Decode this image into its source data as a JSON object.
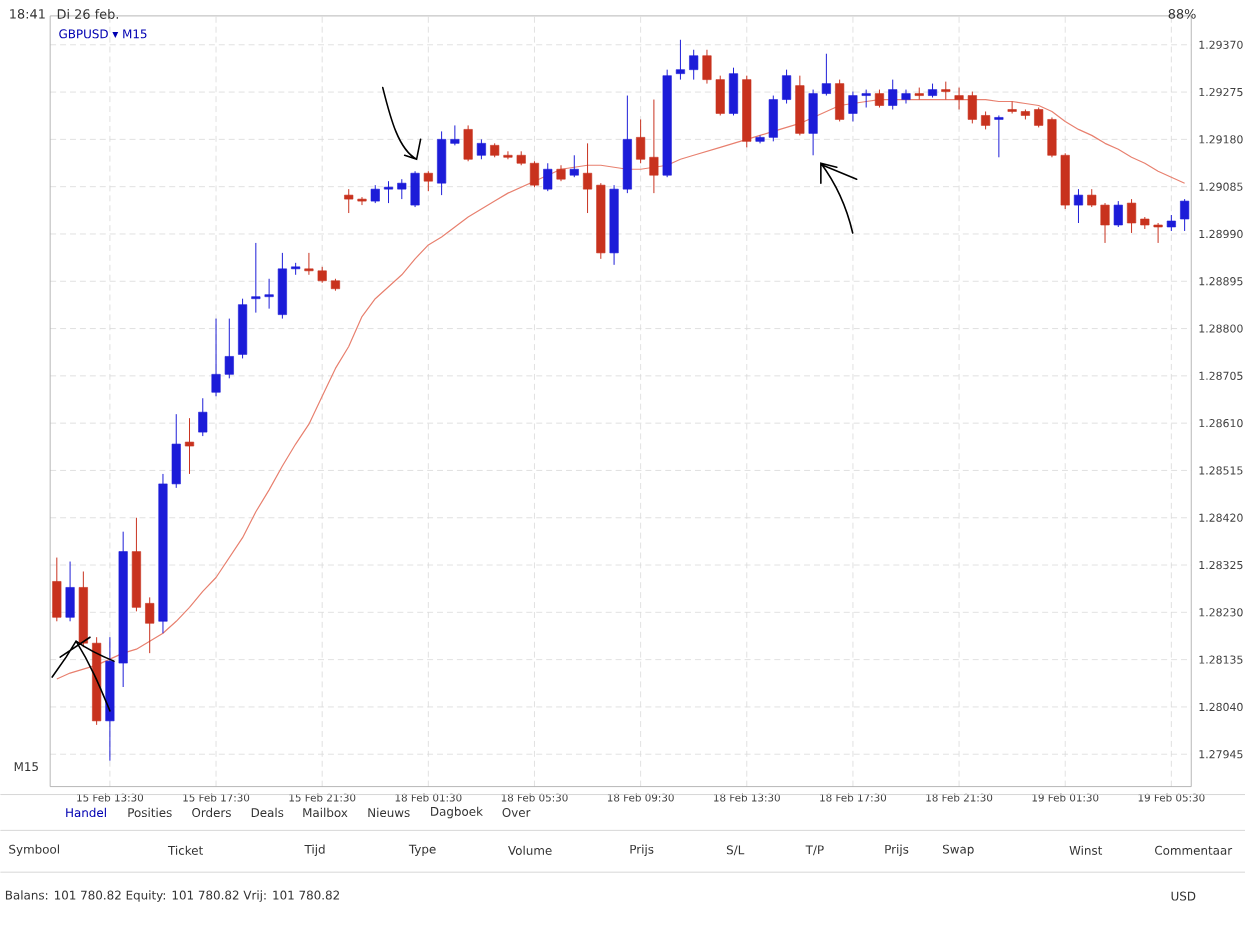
{
  "chart_data": {
    "type": "candlestick",
    "title": "GBPUSD ▾ M15",
    "categories": [
      null,
      null,
      null,
      null,
      "15 Feb 13:30",
      null,
      null,
      null,
      null,
      null,
      null,
      null,
      "15 Feb 17:30",
      null,
      null,
      null,
      null,
      null,
      null,
      null,
      "15 Feb 21:30",
      null,
      null,
      null,
      null,
      null,
      null,
      null,
      "18 Feb 01:30",
      null,
      null,
      null,
      null,
      null,
      null,
      null,
      "18 Feb 05:30",
      null,
      null,
      null,
      null,
      null,
      null,
      null,
      "18 Feb 09:30",
      null,
      null,
      null,
      null,
      null,
      null,
      null,
      "18 Feb 13:30",
      null,
      null,
      null,
      null,
      null,
      null,
      null,
      "18 Feb 17:30",
      null,
      null,
      null,
      null,
      null,
      null,
      null,
      "18 Feb 21:30",
      null,
      null,
      null,
      null,
      null,
      null,
      null,
      "19 Feb 01:30",
      null,
      null,
      null,
      null,
      null,
      null,
      null,
      "19 Feb 05:30",
      null
    ],
    "ohlc": [
      [
        1.28292,
        1.2834,
        1.28212,
        1.2822
      ],
      [
        1.2822,
        1.28332,
        1.28212,
        1.2828
      ],
      [
        1.2828,
        1.28312,
        1.2816,
        1.28168
      ],
      [
        1.28168,
        1.2818,
        1.28004,
        1.28012
      ],
      [
        1.28012,
        1.2818,
        1.27932,
        1.28132
      ],
      [
        1.28128,
        1.28392,
        1.2808,
        1.28352
      ],
      [
        1.28352,
        1.2842,
        1.28232,
        1.2824
      ],
      [
        1.28248,
        1.2826,
        1.28148,
        1.28208
      ],
      [
        1.28212,
        1.28508,
        1.28188,
        1.28488
      ],
      [
        1.28488,
        1.28628,
        1.2848,
        1.28568
      ],
      [
        1.28572,
        1.2862,
        1.28508,
        1.28564
      ],
      [
        1.28592,
        1.2866,
        1.28584,
        1.28632
      ],
      [
        1.28672,
        1.2882,
        1.28664,
        1.28708
      ],
      [
        1.28708,
        1.2882,
        1.287,
        1.28744
      ],
      [
        1.28748,
        1.2886,
        1.2874,
        1.28848
      ],
      [
        1.2886,
        1.28972,
        1.28832,
        1.28864
      ],
      [
        1.28864,
        1.289,
        1.2884,
        1.28868
      ],
      [
        1.28828,
        1.28952,
        1.2882,
        1.2892
      ],
      [
        1.2892,
        1.28932,
        1.28908,
        1.28924
      ],
      [
        1.2892,
        1.28952,
        1.28908,
        1.28916
      ],
      [
        1.28916,
        1.28924,
        1.28892,
        1.28896
      ],
      [
        1.28896,
        1.289,
        1.28876,
        1.2888
      ],
      [
        1.29068,
        1.2908,
        1.29032,
        1.2906
      ],
      [
        1.2906,
        1.29064,
        1.29048,
        1.29056
      ],
      [
        1.29056,
        1.29088,
        1.29052,
        1.2908
      ],
      [
        1.2908,
        1.29096,
        1.29052,
        1.29084
      ],
      [
        1.2908,
        1.291,
        1.2906,
        1.29092
      ],
      [
        1.29048,
        1.29116,
        1.29044,
        1.29112
      ],
      [
        1.29112,
        1.29116,
        1.29076,
        1.29096
      ],
      [
        1.29092,
        1.29196,
        1.29068,
        1.2918
      ],
      [
        1.29172,
        1.29208,
        1.29168,
        1.2918
      ],
      [
        1.292,
        1.29208,
        1.29136,
        1.2914
      ],
      [
        1.29148,
        1.2918,
        1.2914,
        1.29172
      ],
      [
        1.29168,
        1.29172,
        1.29144,
        1.29148
      ],
      [
        1.29148,
        1.29156,
        1.2914,
        1.29144
      ],
      [
        1.29148,
        1.29156,
        1.29128,
        1.29132
      ],
      [
        1.29132,
        1.29136,
        1.29084,
        1.29088
      ],
      [
        1.2908,
        1.29132,
        1.29076,
        1.2912
      ],
      [
        1.2912,
        1.29128,
        1.29096,
        1.291
      ],
      [
        1.29108,
        1.29148,
        1.29104,
        1.2912
      ],
      [
        1.29112,
        1.29172,
        1.29032,
        1.2908
      ],
      [
        1.29088,
        1.29092,
        1.2894,
        1.28952
      ],
      [
        1.28952,
        1.29088,
        1.28928,
        1.2908
      ],
      [
        1.2908,
        1.29268,
        1.29072,
        1.2918
      ],
      [
        1.29184,
        1.2922,
        1.29132,
        1.2914
      ],
      [
        1.29144,
        1.2926,
        1.29072,
        1.29108
      ],
      [
        1.29108,
        1.2932,
        1.29104,
        1.29308
      ],
      [
        1.29312,
        1.2938,
        1.293,
        1.2932
      ],
      [
        1.2932,
        1.2936,
        1.293,
        1.29348
      ],
      [
        1.29348,
        1.2936,
        1.29292,
        1.293
      ],
      [
        1.293,
        1.29308,
        1.29228,
        1.29232
      ],
      [
        1.29232,
        1.29324,
        1.29228,
        1.29312
      ],
      [
        1.293,
        1.29308,
        1.29164,
        1.29176
      ],
      [
        1.29176,
        1.29188,
        1.29172,
        1.29184
      ],
      [
        1.29184,
        1.29268,
        1.29176,
        1.2926
      ],
      [
        1.2926,
        1.2932,
        1.29252,
        1.29308
      ],
      [
        1.29288,
        1.29308,
        1.29188,
        1.29192
      ],
      [
        1.29192,
        1.2928,
        1.29148,
        1.29272
      ],
      [
        1.29272,
        1.29352,
        1.29268,
        1.29292
      ],
      [
        1.29292,
        1.293,
        1.29216,
        1.2922
      ],
      [
        1.29232,
        1.29276,
        1.29216,
        1.29268
      ],
      [
        1.29268,
        1.2928,
        1.29244,
        1.29272
      ],
      [
        1.29272,
        1.2928,
        1.29244,
        1.29248
      ],
      [
        1.29248,
        1.293,
        1.2924,
        1.2928
      ],
      [
        1.2926,
        1.2928,
        1.29252,
        1.29272
      ],
      [
        1.29272,
        1.29284,
        1.2926,
        1.29268
      ],
      [
        1.29268,
        1.29292,
        1.29264,
        1.2928
      ],
      [
        1.2928,
        1.29296,
        1.2926,
        1.29276
      ],
      [
        1.29268,
        1.29284,
        1.2924,
        1.2926
      ],
      [
        1.29268,
        1.29276,
        1.29212,
        1.2922
      ],
      [
        1.29228,
        1.29236,
        1.292,
        1.29208
      ],
      [
        1.2922,
        1.29228,
        1.29144,
        1.29224
      ],
      [
        1.2924,
        1.29256,
        1.29232,
        1.29236
      ],
      [
        1.29236,
        1.2924,
        1.2922,
        1.29228
      ],
      [
        1.2924,
        1.29244,
        1.29204,
        1.29208
      ],
      [
        1.2922,
        1.29224,
        1.29144,
        1.29148
      ],
      [
        1.29148,
        1.29152,
        1.2904,
        1.29048
      ],
      [
        1.29048,
        1.2908,
        1.29012,
        1.29068
      ],
      [
        1.29068,
        1.2908,
        1.29044,
        1.29048
      ],
      [
        1.29048,
        1.29052,
        1.28972,
        1.29008
      ],
      [
        1.29008,
        1.29056,
        1.29004,
        1.29048
      ],
      [
        1.29052,
        1.2906,
        1.28992,
        1.29012
      ],
      [
        1.2902,
        1.29024,
        1.29,
        1.29008
      ],
      [
        1.29008,
        1.29012,
        1.28972,
        1.29004
      ],
      [
        1.29004,
        1.29028,
        1.28996,
        1.29016
      ],
      [
        1.2902,
        1.2906,
        1.28996,
        1.29056
      ]
    ],
    "series": [
      {
        "type": "line",
        "color": "#e8806f",
        "values": [
          1.28096,
          1.28108,
          1.28116,
          1.28124,
          1.28136,
          1.28148,
          1.28156,
          1.28172,
          1.28188,
          1.28212,
          1.2824,
          1.28272,
          1.283,
          1.2834,
          1.2838,
          1.28432,
          1.28476,
          1.28524,
          1.28568,
          1.28608,
          1.28664,
          1.2872,
          1.28764,
          1.28824,
          1.2886,
          1.28884,
          1.28908,
          1.2894,
          1.28968,
          1.28984,
          1.29004,
          1.29024,
          1.2904,
          1.29056,
          1.29072,
          1.29084,
          1.29096,
          1.29108,
          1.2912,
          1.29124,
          1.29128,
          1.29128,
          1.29124,
          1.2912,
          1.2912,
          1.29124,
          1.29128,
          1.2914,
          1.29148,
          1.29156,
          1.29164,
          1.29172,
          1.2918,
          1.29188,
          1.29196,
          1.29204,
          1.29212,
          1.29224,
          1.29236,
          1.29248,
          1.29252,
          1.29256,
          1.2926,
          1.2926,
          1.2926,
          1.2926,
          1.2926,
          1.2926,
          1.2926,
          1.2926,
          1.2926,
          1.29256,
          1.29256,
          1.29252,
          1.29248,
          1.29236,
          1.29216,
          1.292,
          1.29188,
          1.29172,
          1.2916,
          1.29144,
          1.29132,
          1.29116,
          1.29104,
          1.29092
        ]
      }
    ],
    "ylim": [
      1.2788,
      1.29428
    ],
    "yticks": [
      {
        "value": 1.2937,
        "label": "1.29370"
      },
      {
        "value": 1.29275,
        "label": "1.29275"
      },
      {
        "value": 1.2918,
        "label": "1.29180"
      },
      {
        "value": 1.29085,
        "label": "1.29085"
      },
      {
        "value": 1.2899,
        "label": "1.28990"
      },
      {
        "value": 1.28895,
        "label": "1.28895"
      },
      {
        "value": 1.288,
        "label": "1.28800"
      },
      {
        "value": 1.28705,
        "label": "1.28705"
      },
      {
        "value": 1.2861,
        "label": "1.28610"
      },
      {
        "value": 1.28515,
        "label": "1.28515"
      },
      {
        "value": 1.2842,
        "label": "1.28420"
      },
      {
        "value": 1.28325,
        "label": "1.28325"
      },
      {
        "value": 1.2823,
        "label": "1.28230"
      },
      {
        "value": 1.28135,
        "label": "1.28135"
      },
      {
        "value": 1.2804,
        "label": "1.28040"
      },
      {
        "value": 1.27945,
        "label": "1.27945"
      }
    ],
    "grid": true,
    "annotations": [
      "18:41",
      "Di 26 feb.",
      "88%",
      "M15",
      "Handel",
      "Posities",
      "Orders",
      "Deals",
      "Mailbox",
      "Nieuws",
      "Dagboek",
      "Over",
      "Symbool",
      "Ticket",
      "Tijd",
      "Type",
      "Volume",
      "Prijs",
      "S/L",
      "T/P",
      "Prijs",
      "Swap",
      "Winst",
      "Commentaar",
      "Balans: 101 780.82 Equity: 101 780.82 Vrij: 101 780.82",
      "USD"
    ]
  }
}
